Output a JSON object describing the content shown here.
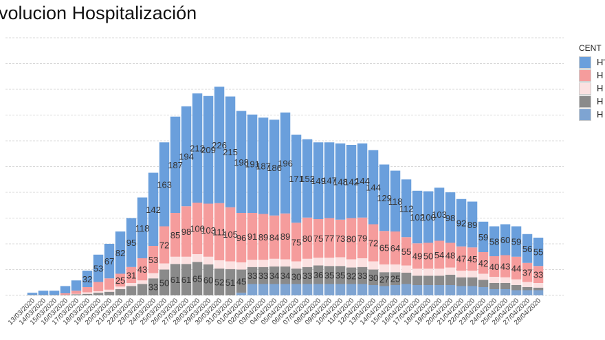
{
  "chart_data": {
    "type": "bar",
    "stacked": true,
    "title": "volucion Hospitalización",
    "legend": {
      "title": "CENT",
      "placement": "right"
    },
    "grid": true,
    "ylim": [
      0,
      500
    ],
    "categories": [
      "13/03/2020",
      "14/03/2020",
      "15/03/2020",
      "16/03/2020",
      "17/03/2020",
      "18/03/2020",
      "19/03/2020",
      "20/03/2020",
      "21/03/2020",
      "22/03/2020",
      "23/03/2020",
      "24/03/2020",
      "25/03/2020",
      "26/03/2020",
      "27/03/2020",
      "28/03/2020",
      "29/03/2020",
      "30/03/2020",
      "31/03/2020",
      "01/04/2020",
      "02/04/2020",
      "03/04/2020",
      "04/04/2020",
      "05/04/2020",
      "06/04/2020",
      "07/04/2020",
      "08/04/2020",
      "09/04/2020",
      "10/04/2020",
      "11/04/2020",
      "12/04/2020",
      "13/04/2020",
      "14/04/2020",
      "15/04/2020",
      "16/04/2020",
      "17/04/2020",
      "18/04/2020",
      "19/04/2020",
      "20/04/2020",
      "21/04/2020",
      "22/04/2020",
      "23/04/2020",
      "24/04/2020",
      "25/04/2020",
      "26/04/2020",
      "27/04/2020",
      "28/04/2020"
    ],
    "series": [
      {
        "name": "H'",
        "color": "#6a9fdc",
        "labeled_from": 5,
        "values": [
          4,
          8,
          8,
          14,
          20,
          32,
          53,
          67,
          82,
          95,
          118,
          142,
          163,
          187,
          194,
          212,
          209,
          226,
          215,
          198,
          191,
          187,
          186,
          196,
          171,
          152,
          149,
          147,
          148,
          142,
          144,
          144,
          129,
          118,
          112,
          102,
          100,
          103,
          98,
          92,
          89,
          59,
          58,
          60,
          59,
          56,
          55
        ]
      },
      {
        "name": "H",
        "color": "#f59c9c",
        "labeled_from": 8,
        "values": [
          0,
          0,
          0,
          3,
          6,
          10,
          18,
          22,
          25,
          31,
          43,
          53,
          72,
          85,
          98,
          100,
          103,
          111,
          105,
          96,
          91,
          89,
          84,
          89,
          75,
          80,
          75,
          77,
          73,
          80,
          79,
          72,
          65,
          64,
          55,
          49,
          50,
          54,
          48,
          47,
          45,
          42,
          40,
          43,
          44,
          37,
          33
        ]
      },
      {
        "name": "H",
        "color": "#fbe1e1",
        "labeled_from": 999,
        "values": [
          0,
          0,
          0,
          0,
          1,
          3,
          3,
          4,
          5,
          6,
          7,
          10,
          12,
          14,
          14,
          15,
          15,
          16,
          15,
          14,
          14,
          14,
          15,
          14,
          14,
          16,
          15,
          16,
          17,
          16,
          17,
          16,
          15,
          15,
          14,
          14,
          14,
          14,
          14,
          13,
          13,
          12,
          12,
          11,
          11,
          10,
          9
        ]
      },
      {
        "name": "H",
        "color": "#8a8a8a",
        "labeled_from": 11,
        "labeled_to": 33,
        "values": [
          1,
          1,
          1,
          1,
          2,
          3,
          5,
          7,
          12,
          18,
          22,
          33,
          50,
          61,
          61,
          65,
          60,
          52,
          51,
          45,
          33,
          33,
          34,
          34,
          30,
          33,
          36,
          35,
          35,
          32,
          33,
          30,
          27,
          25,
          22,
          18,
          18,
          18,
          20,
          17,
          17,
          14,
          12,
          12,
          10,
          6,
          5
        ]
      },
      {
        "name": "H",
        "color": "#7ea4d2",
        "labeled_from": 999,
        "values": [
          0,
          0,
          0,
          0,
          0,
          0,
          0,
          0,
          0,
          0,
          0,
          0,
          0,
          0,
          0,
          0,
          0,
          0,
          0,
          5,
          22,
          22,
          22,
          22,
          22,
          22,
          22,
          22,
          22,
          22,
          22,
          20,
          18,
          20,
          22,
          20,
          20,
          20,
          20,
          18,
          18,
          16,
          12,
          12,
          10,
          10,
          10
        ]
      }
    ]
  }
}
